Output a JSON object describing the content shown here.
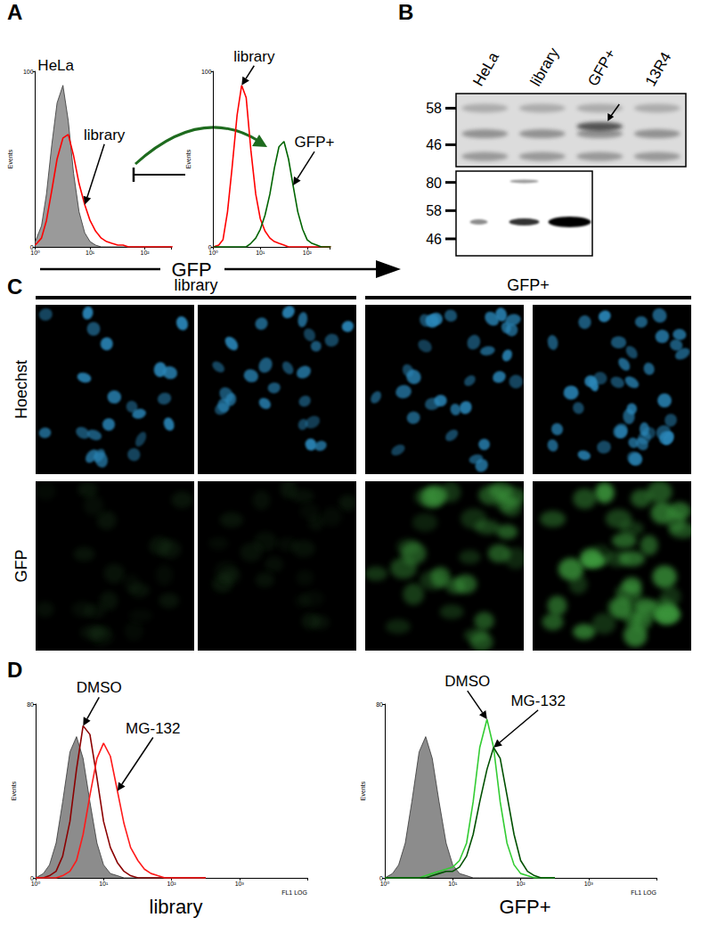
{
  "panel_labels": [
    "A",
    "B",
    "C",
    "D"
  ],
  "panel_a": {
    "axis_title": "GFP"
  },
  "blot": {
    "lanes": [
      "HeLa",
      "library",
      "GFP+",
      "13R4"
    ],
    "top_markers": [
      58,
      46
    ],
    "bottom_markers": [
      80,
      58,
      46
    ]
  },
  "microscopy": {
    "groups": [
      "library",
      "GFP+"
    ],
    "rows": [
      "Hoechst",
      "GFP"
    ]
  },
  "chart_data": [
    {
      "type": "line",
      "log": "x",
      "x": [
        1,
        1.3,
        1.6,
        2,
        2.5,
        3.2,
        4,
        5,
        6.3,
        8,
        10,
        12.6,
        16,
        20,
        25,
        32,
        40,
        50,
        63,
        80,
        100,
        126,
        160,
        200,
        250,
        320
      ],
      "xlim": [
        1,
        300
      ],
      "xticks": [
        {
          "value": 1,
          "label": "10⁰"
        },
        {
          "value": 10,
          "label": "10¹"
        },
        {
          "value": 100,
          "label": "10²"
        }
      ],
      "ylim": [
        0,
        100
      ],
      "yticks": [
        0,
        100
      ],
      "ylabel": "Events",
      "series": [
        {
          "name": "HeLa",
          "type": "area",
          "color": "#9a9a9a",
          "values": [
            3,
            12,
            30,
            58,
            82,
            92,
            72,
            42,
            20,
            8,
            3,
            1,
            0,
            0,
            0,
            0,
            0,
            0,
            0,
            0,
            0,
            0,
            0,
            0,
            0,
            0
          ]
        },
        {
          "name": "library",
          "type": "line",
          "color": "#ff0000",
          "values": [
            1,
            5,
            15,
            32,
            50,
            62,
            64,
            52,
            36,
            24,
            15,
            9,
            5,
            3,
            2,
            1,
            1,
            0,
            0,
            0,
            0,
            0,
            0,
            0,
            0,
            0
          ]
        }
      ]
    },
    {
      "type": "line",
      "log": "x",
      "x": [
        1,
        1.3,
        1.6,
        2,
        2.5,
        3.2,
        4,
        5,
        6.3,
        8,
        10,
        12.6,
        16,
        20,
        25,
        32,
        40,
        50,
        63,
        80,
        100,
        126,
        160,
        200,
        250,
        320
      ],
      "xlim": [
        1,
        300
      ],
      "xticks": [
        {
          "value": 1,
          "label": "10⁰"
        },
        {
          "value": 10,
          "label": "10¹"
        },
        {
          "value": 100,
          "label": "10²"
        }
      ],
      "ylim": [
        0,
        100
      ],
      "yticks": [
        0,
        100
      ],
      "ylabel": "Events",
      "series": [
        {
          "name": "library",
          "type": "line",
          "color": "#ff0000",
          "values": [
            0,
            1,
            4,
            20,
            45,
            75,
            92,
            85,
            55,
            30,
            16,
            9,
            5,
            3,
            2,
            1,
            0,
            0,
            0,
            0,
            0,
            0,
            0,
            0,
            0,
            0
          ]
        },
        {
          "name": "GFP+",
          "type": "line",
          "color": "#006400",
          "values": [
            0,
            0,
            0,
            0,
            0,
            0,
            0,
            0,
            2,
            5,
            10,
            18,
            30,
            45,
            57,
            60,
            50,
            35,
            20,
            10,
            4,
            2,
            1,
            0,
            0,
            0
          ]
        }
      ]
    },
    {
      "type": "line",
      "log": "x",
      "title": "library",
      "xlabel": "FL1 LOG",
      "x": [
        1,
        1.3,
        1.6,
        2,
        2.5,
        3.2,
        4,
        5,
        6.3,
        8,
        10,
        12.6,
        16,
        20,
        25,
        32,
        40,
        50,
        63,
        80,
        100,
        126,
        160,
        200,
        250,
        320
      ],
      "xlim": [
        1,
        10000
      ],
      "xticks": [
        {
          "value": 1,
          "label": "10⁰"
        },
        {
          "value": 10,
          "label": "10¹"
        },
        {
          "value": 100,
          "label": "10²"
        },
        {
          "value": 1000,
          "label": "10³"
        }
      ],
      "ylim": [
        0,
        80
      ],
      "yticks": [
        0,
        80
      ],
      "ylabel": "Events",
      "series": [
        {
          "type": "area",
          "color": "#8c8c8c",
          "values": [
            0,
            2,
            6,
            16,
            35,
            58,
            65,
            55,
            35,
            16,
            6,
            2,
            1,
            0,
            0,
            0,
            0,
            0,
            0,
            0,
            0,
            0,
            0,
            0,
            0,
            0
          ]
        },
        {
          "name": "DMSO",
          "type": "line",
          "color": "#8b0000",
          "values": [
            0,
            0,
            1,
            3,
            10,
            26,
            50,
            70,
            66,
            46,
            26,
            14,
            7,
            3,
            1,
            0,
            0,
            0,
            0,
            0,
            0,
            0,
            0,
            0,
            0,
            0
          ]
        },
        {
          "name": "MG-132",
          "type": "line",
          "color": "#ff1a1a",
          "values": [
            0,
            0,
            0,
            0,
            1,
            3,
            8,
            20,
            38,
            55,
            62,
            56,
            40,
            25,
            14,
            8,
            4,
            2,
            1,
            0,
            0,
            0,
            0,
            0,
            0,
            0
          ]
        }
      ]
    },
    {
      "type": "line",
      "log": "x",
      "title": "GFP+",
      "xlabel": "FL1 LOG",
      "x": [
        1,
        1.3,
        1.6,
        2,
        2.5,
        3.2,
        4,
        5,
        6.3,
        8,
        10,
        12.6,
        16,
        20,
        25,
        32,
        40,
        50,
        63,
        80,
        100,
        126,
        160,
        200,
        250,
        320
      ],
      "xlim": [
        1,
        10000
      ],
      "xticks": [
        {
          "value": 1,
          "label": "10⁰"
        },
        {
          "value": 10,
          "label": "10¹"
        },
        {
          "value": 100,
          "label": "10²"
        },
        {
          "value": 1000,
          "label": "10³"
        }
      ],
      "ylim": [
        0,
        80
      ],
      "yticks": [
        0,
        80
      ],
      "ylabel": "Events",
      "series": [
        {
          "type": "area",
          "color": "#8c8c8c",
          "values": [
            0,
            2,
            6,
            16,
            35,
            58,
            65,
            55,
            35,
            16,
            6,
            2,
            1,
            0,
            0,
            0,
            0,
            0,
            0,
            0,
            0,
            0,
            0,
            0,
            0,
            0
          ]
        },
        {
          "name": "DMSO",
          "type": "line",
          "color": "#33cc33",
          "values": [
            0,
            0,
            0,
            0,
            0,
            0,
            1,
            2,
            3,
            4,
            5,
            8,
            16,
            35,
            60,
            73,
            60,
            35,
            16,
            6,
            2,
            1,
            0,
            0,
            0,
            0
          ]
        },
        {
          "name": "MG-132",
          "type": "line",
          "color": "#005000",
          "values": [
            0,
            0,
            0,
            0,
            0,
            0,
            0,
            1,
            2,
            3,
            3,
            5,
            10,
            20,
            35,
            50,
            60,
            55,
            38,
            20,
            8,
            3,
            1,
            0,
            0,
            0
          ]
        }
      ]
    }
  ]
}
